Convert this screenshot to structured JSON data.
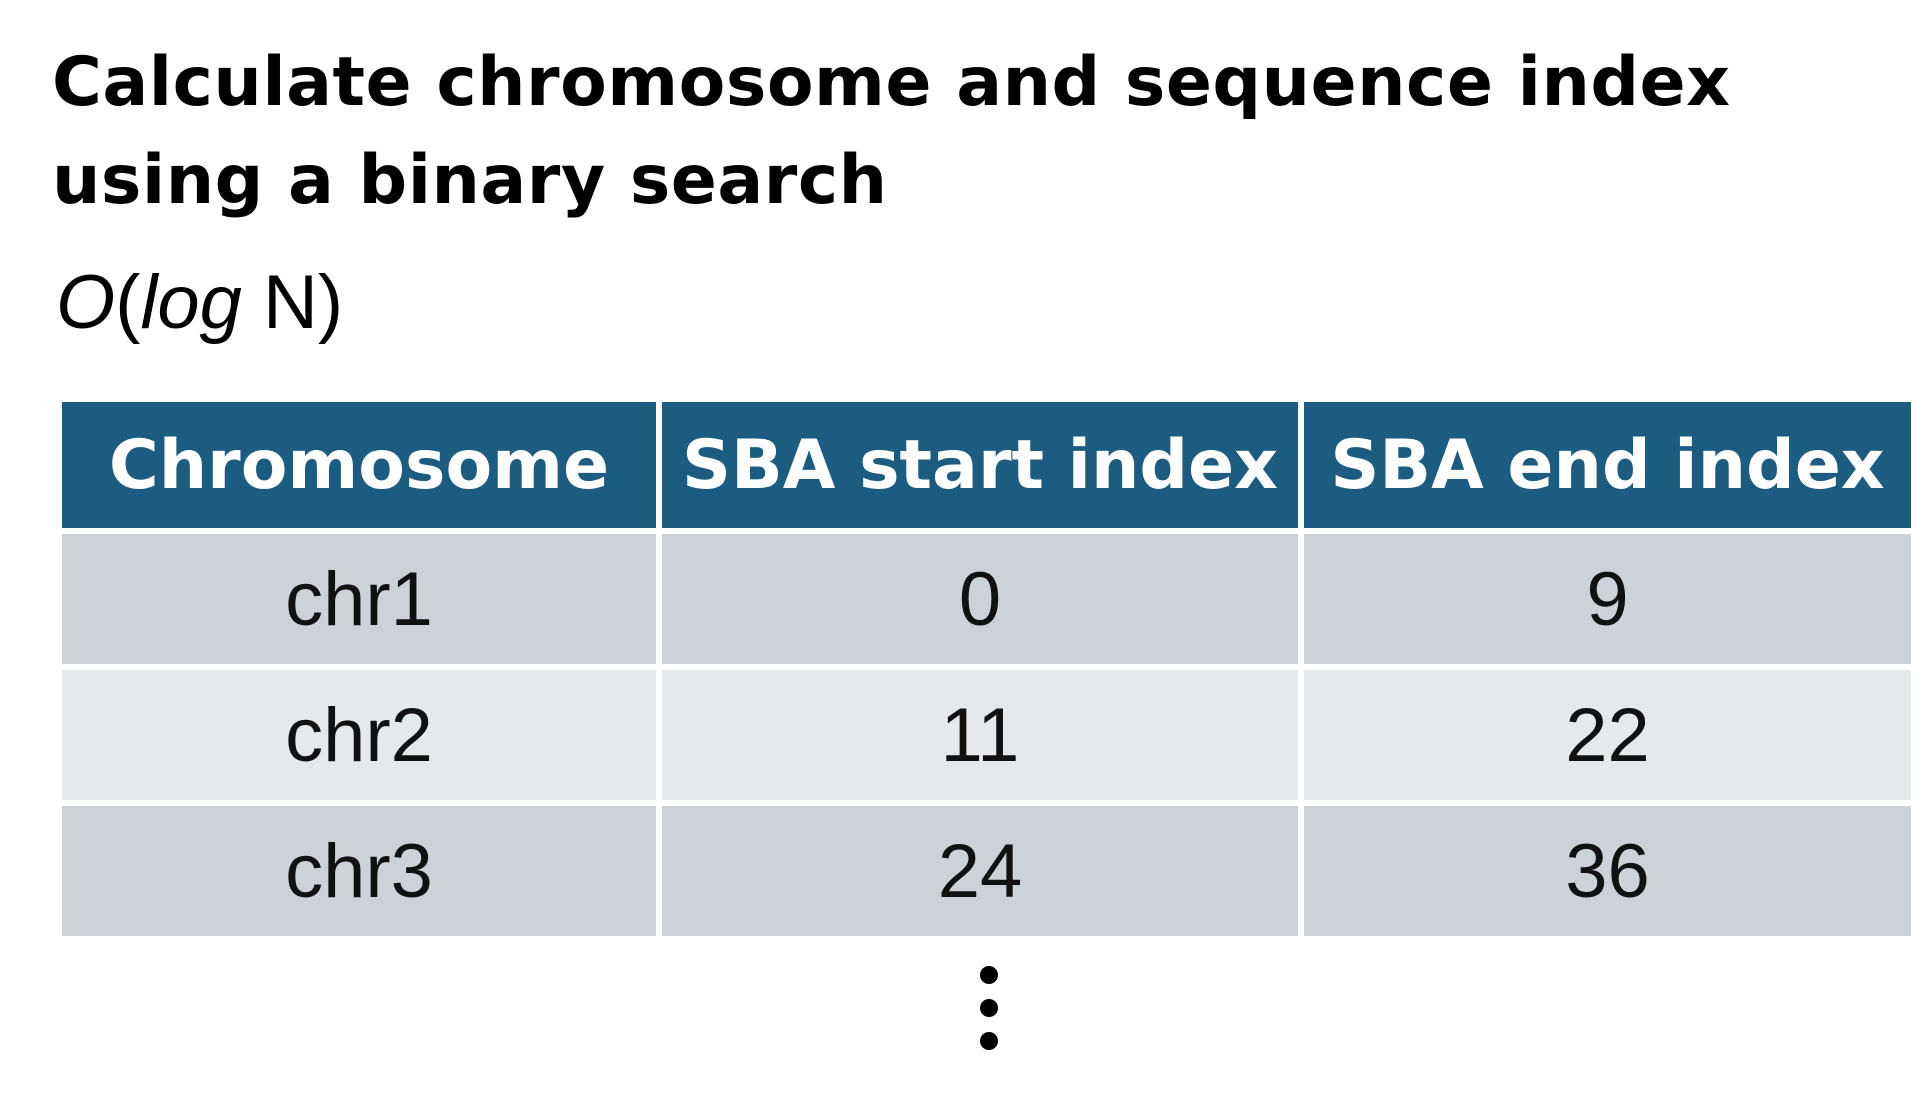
{
  "title": {
    "line1": "Calculate chromosome and sequence index",
    "line2": "using a binary search"
  },
  "complexity": {
    "o": "O",
    "open": "(",
    "log": "log",
    "n": " N)"
  },
  "table": {
    "headers": [
      "Chromosome",
      "SBA start index",
      "SBA end index"
    ],
    "rows": [
      [
        "chr1",
        "0",
        "9"
      ],
      [
        "chr2",
        "11",
        "22"
      ],
      [
        "chr3",
        "24",
        "36"
      ]
    ]
  },
  "colors": {
    "header_bg": "#1b5c80",
    "row_dark": "#cdd2d9",
    "row_light": "#e6e9ec",
    "text": "#111111",
    "header_text": "#ffffff"
  },
  "continuation_icon": "vertical-ellipsis-icon"
}
